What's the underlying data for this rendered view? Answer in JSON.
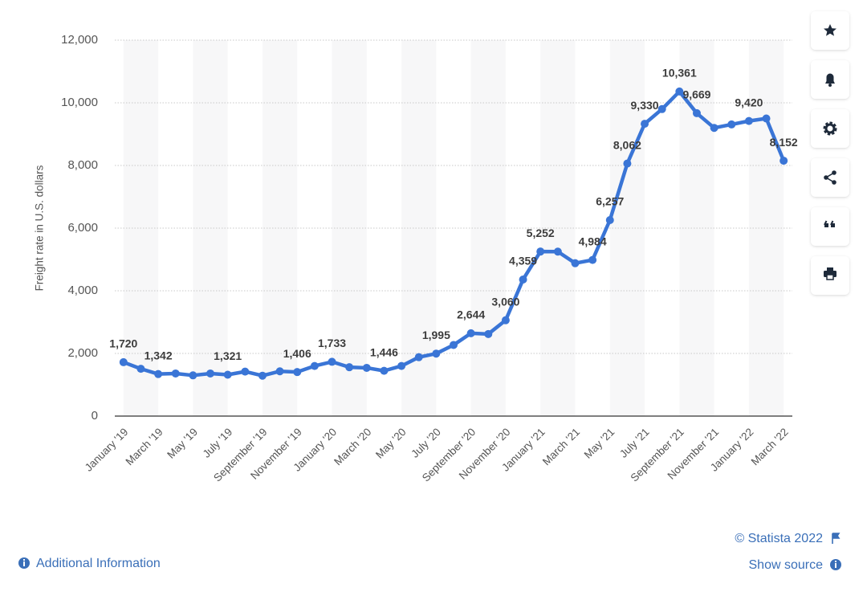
{
  "chart_data": {
    "type": "line",
    "y_label": "Freight rate in U.S. dollars",
    "categories": [
      "January '19",
      null,
      "March '19",
      null,
      "May '19",
      null,
      "July '19",
      null,
      "September '19",
      null,
      "November '19",
      null,
      "January '20",
      null,
      "March '20",
      null,
      "May '20",
      null,
      "July '20",
      null,
      "September '20",
      null,
      "November '20",
      null,
      "January '21",
      null,
      "March '21",
      null,
      "May '21",
      null,
      "July '21",
      null,
      "September '21",
      null,
      "November '21",
      null,
      "January '22",
      null,
      "March '22"
    ],
    "series": [
      {
        "name": "Freight rate",
        "color": "#3a75d6",
        "values": [
          1720,
          1510,
          1342,
          1360,
          1300,
          1360,
          1321,
          1420,
          1290,
          1430,
          1406,
          1600,
          1733,
          1560,
          1540,
          1446,
          1600,
          1880,
          1995,
          2270,
          2644,
          2620,
          3060,
          4359,
          5252,
          5250,
          4880,
          4984,
          6257,
          8062,
          9330,
          9800,
          10361,
          9669,
          9200,
          9310,
          9420,
          9500,
          8152
        ],
        "value_labels": [
          "1,720",
          null,
          "1,342",
          null,
          null,
          null,
          "1,321",
          null,
          null,
          null,
          "1,406",
          null,
          "1,733",
          null,
          null,
          "1,446",
          null,
          null,
          "1,995",
          null,
          "2,644",
          null,
          "3,060",
          "4,359",
          "5,252",
          null,
          null,
          "4,984",
          "6,257",
          "8,062",
          "9,330",
          null,
          "10,361",
          "9,669",
          null,
          null,
          "9,420",
          null,
          "8,152"
        ]
      }
    ],
    "ylim": [
      0,
      12000
    ],
    "yticks": [
      0,
      {
        "value": 2000,
        "label": "2,000"
      },
      {
        "value": 4000,
        "label": "4,000"
      },
      {
        "value": 6000,
        "label": "6,000"
      },
      {
        "value": 8000,
        "label": "8,000"
      },
      {
        "value": 10000,
        "label": "10,000"
      },
      {
        "value": 12000,
        "label": "12,000"
      }
    ],
    "grid": true
  },
  "footer": {
    "copyright": "© Statista 2022",
    "show_source": "Show source",
    "additional_info": "Additional Information"
  }
}
